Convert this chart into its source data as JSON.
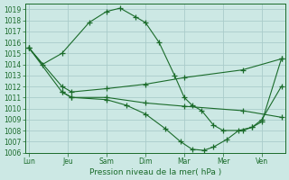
{
  "background_color": "#cce8e4",
  "grid_color": "#aaccca",
  "line_color": "#1a6b2a",
  "ylim": [
    1006,
    1019.5
  ],
  "yticks": [
    1006,
    1007,
    1008,
    1009,
    1010,
    1011,
    1012,
    1013,
    1014,
    1015,
    1016,
    1017,
    1018,
    1019
  ],
  "xlabel": "Pression niveau de la mer( hPa )",
  "xtick_labels": [
    "Lun",
    "Jeu",
    "Sam",
    "Dim",
    "Mar",
    "Mer",
    "Ven"
  ],
  "xtick_positions": [
    0,
    1,
    2,
    3,
    4,
    5,
    6
  ],
  "xlim": [
    -0.1,
    6.6
  ],
  "line1_x": [
    0.0,
    0.35,
    0.85,
    1.55,
    2.0,
    2.35,
    2.75,
    3.0,
    3.35,
    3.75,
    4.0,
    4.2,
    4.45,
    4.75,
    5.0,
    5.5,
    5.75,
    6.0,
    6.5
  ],
  "line1_y": [
    1015.5,
    1014.0,
    1015.0,
    1017.8,
    1018.8,
    1019.1,
    1018.3,
    1017.8,
    1016.0,
    1013.0,
    1011.0,
    1010.3,
    1009.8,
    1008.5,
    1008.0,
    1008.0,
    1008.3,
    1009.0,
    1012.0
  ],
  "line2_x": [
    0.0,
    0.85,
    1.1,
    2.0,
    3.0,
    4.0,
    5.5,
    6.5
  ],
  "line2_y": [
    1015.5,
    1012.0,
    1011.5,
    1011.8,
    1012.2,
    1012.8,
    1013.5,
    1014.5
  ],
  "line3_x": [
    0.0,
    0.85,
    1.1,
    2.0,
    3.0,
    4.0,
    5.5,
    6.5
  ],
  "line3_y": [
    1015.5,
    1011.5,
    1011.0,
    1011.0,
    1010.5,
    1010.2,
    1009.8,
    1009.2
  ],
  "line4_x": [
    0.85,
    1.1,
    2.0,
    2.5,
    3.0,
    3.5,
    3.9,
    4.2,
    4.5,
    4.75,
    5.1,
    5.4,
    5.75,
    6.0,
    6.5
  ],
  "line4_y": [
    1011.5,
    1011.0,
    1010.8,
    1010.3,
    1009.5,
    1008.2,
    1007.0,
    1006.3,
    1006.2,
    1006.5,
    1007.2,
    1008.0,
    1008.3,
    1008.8,
    1014.5
  ],
  "marker_size": 2.8,
  "tick_fontsize": 5.5,
  "label_fontsize": 6.5
}
